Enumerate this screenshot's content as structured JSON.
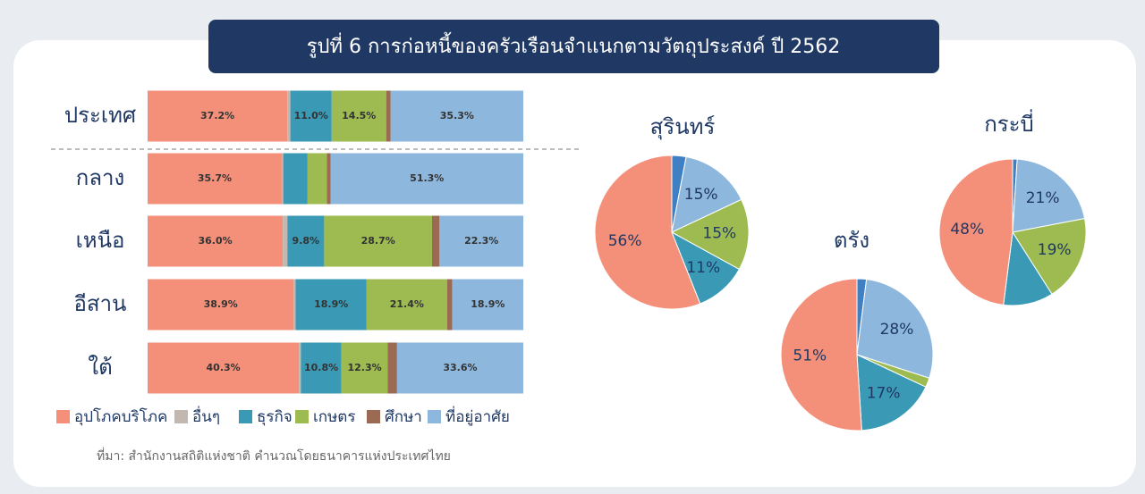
{
  "title": "รูปที่ 6 การก่อหนี้ของครัวเรือนจำแนกตามวัตถุประสงค์ ปี 2562",
  "source": "ที่มา: สำนักงานสถิติแห่งชาติ คำนวณโดยธนาคารแห่งประเทศไทย",
  "chart_data": [
    {
      "type": "stacked-bar-horizontal",
      "categories": [
        "ประเทศ",
        "กลาง",
        "เหนือ",
        "อีสาน",
        "ใต้"
      ],
      "series": [
        {
          "name": "อุปโภคบริโภค",
          "color": "#f4907a",
          "values": [
            37.2,
            35.7,
            36.0,
            38.9,
            40.3
          ],
          "value_labels": [
            "37.2%",
            "35.7%",
            "36.0%",
            "38.9%",
            "40.3%"
          ]
        },
        {
          "name": "อื่นๆ",
          "color": "#c2b8b0",
          "values": [
            0.8,
            0.4,
            1.2,
            0.5,
            0.5
          ],
          "value_labels": [
            null,
            null,
            null,
            null,
            null
          ]
        },
        {
          "name": "ธุรกิจ",
          "color": "#3a9ab6",
          "values": [
            11.0,
            6.4,
            9.8,
            18.9,
            10.8
          ],
          "value_labels": [
            "11.0%",
            null,
            "9.8%",
            "18.9%",
            "10.8%"
          ]
        },
        {
          "name": "เกษตร",
          "color": "#9dbb50",
          "values": [
            14.5,
            5.2,
            28.7,
            21.4,
            12.3
          ],
          "value_labels": [
            "14.5%",
            null,
            "28.7%",
            "21.4%",
            "12.3%"
          ]
        },
        {
          "name": "ศึกษา",
          "color": "#9a6b52",
          "values": [
            1.2,
            1.0,
            2.0,
            1.4,
            2.5
          ],
          "value_labels": [
            null,
            null,
            null,
            null,
            null
          ]
        },
        {
          "name": "ที่อยู่อาศัย",
          "color": "#8db7dc",
          "values": [
            35.3,
            51.3,
            22.3,
            18.9,
            33.6
          ],
          "value_labels": [
            "35.3%",
            "51.3%",
            "22.3%",
            "18.9%",
            "33.6%"
          ]
        }
      ]
    },
    {
      "type": "pie",
      "title": "สุรินทร์",
      "values": [
        3,
        15,
        15,
        11,
        56
      ],
      "value_labels": [
        null,
        "15%",
        "15%",
        "11%",
        "56%"
      ],
      "colors": [
        "#3f80c4",
        "#8db7dc",
        "#9dbb50",
        "#3a9ab6",
        "#f4907a"
      ]
    },
    {
      "type": "pie",
      "title": "ตรัง",
      "values": [
        2,
        28,
        2,
        17,
        51
      ],
      "value_labels": [
        null,
        "28%",
        null,
        "17%",
        "51%"
      ],
      "colors": [
        "#3f80c4",
        "#8db7dc",
        "#9dbb50",
        "#3a9ab6",
        "#f4907a"
      ]
    },
    {
      "type": "pie",
      "title": "กระบี่",
      "values": [
        1,
        21,
        19,
        11,
        48
      ],
      "value_labels": [
        null,
        "21%",
        "19%",
        null,
        "48%"
      ],
      "colors": [
        "#3f80c4",
        "#8db7dc",
        "#9dbb50",
        "#3a9ab6",
        "#f4907a"
      ]
    }
  ]
}
